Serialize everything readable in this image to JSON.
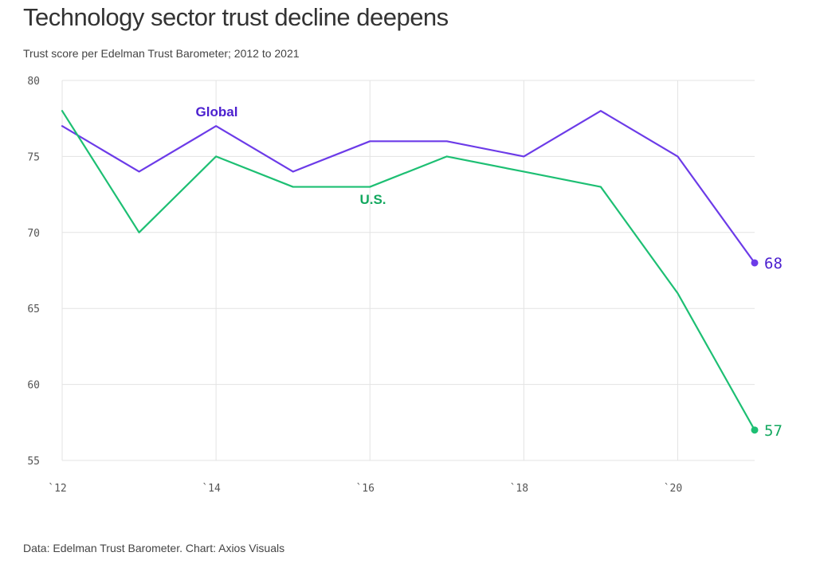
{
  "colors": {
    "global": "#6c3be8",
    "us": "#1dbf73",
    "global_label": "#4b1fcf",
    "us_label": "#13a85f",
    "grid": "#e3e3e3",
    "title": "#333333"
  },
  "chart_data": {
    "type": "line",
    "title": "Technology sector trust decline deepens",
    "subtitle": "Trust score per Edelman Trust Barometer; 2012 to 2021",
    "source": "Data: Edelman Trust Barometer. Chart: Axios Visuals",
    "x": [
      2012,
      2013,
      2014,
      2015,
      2016,
      2017,
      2018,
      2019,
      2020,
      2021
    ],
    "xlim": [
      2012,
      2021
    ],
    "ylim": [
      55,
      80
    ],
    "yticks": [
      55,
      60,
      65,
      70,
      75,
      80
    ],
    "xticks": [
      {
        "value": 2012,
        "label": "`12"
      },
      {
        "value": 2014,
        "label": "`14"
      },
      {
        "value": 2016,
        "label": "`16"
      },
      {
        "value": 2018,
        "label": "`18"
      },
      {
        "value": 2020,
        "label": "`20"
      }
    ],
    "grid": true,
    "series": [
      {
        "name": "Global",
        "values": [
          77,
          74,
          77,
          74,
          76,
          76,
          75,
          78,
          75,
          68
        ],
        "end_label": "68"
      },
      {
        "name": "U.S.",
        "values": [
          78,
          70,
          75,
          73,
          73,
          75,
          74,
          73,
          66,
          57
        ],
        "end_label": "57"
      }
    ]
  }
}
